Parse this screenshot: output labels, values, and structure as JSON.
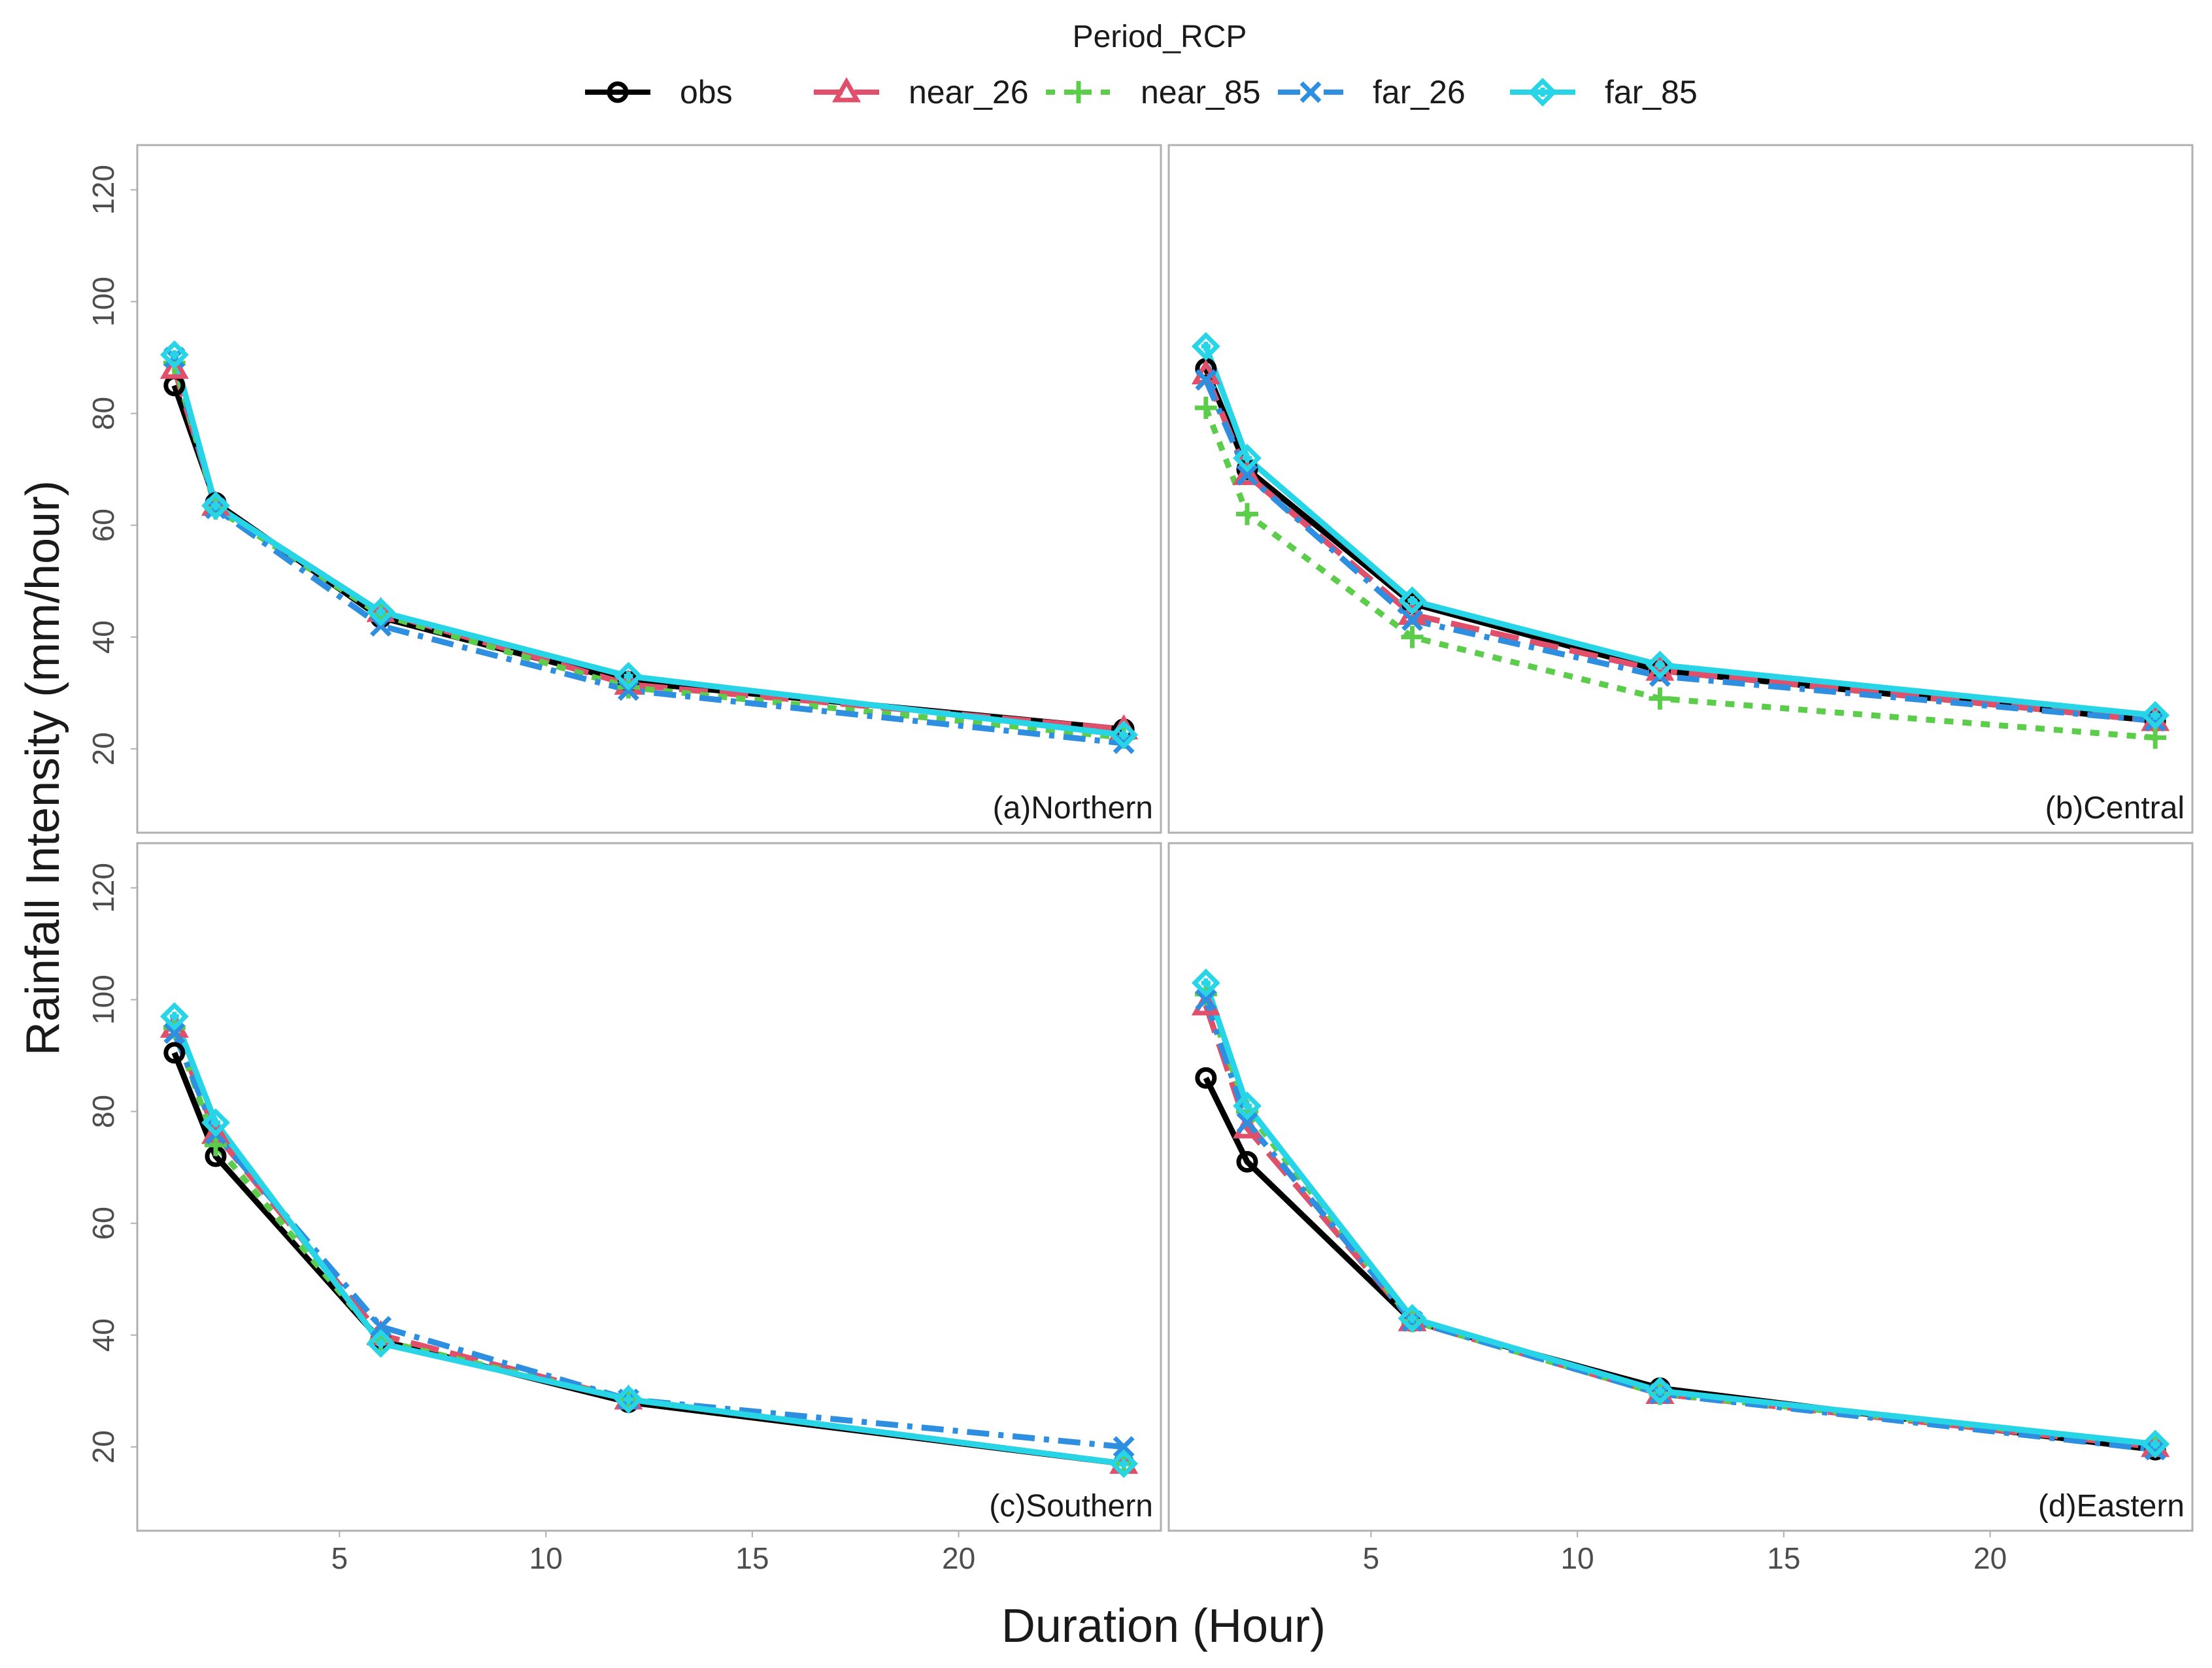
{
  "chart_data": {
    "type": "line",
    "legend": {
      "title": "Period_RCP",
      "position": "top",
      "entries": [
        "obs",
        "near_26",
        "near_85",
        "far_26",
        "far_85"
      ]
    },
    "xlabel": "Duration (Hour)",
    "ylabel": "Rainfall Intensity (mm/hour)",
    "xlim": [
      0.1,
      24.9
    ],
    "ylim": [
      5,
      128
    ],
    "x_ticks": [
      5,
      10,
      15,
      20
    ],
    "y_ticks": [
      20,
      40,
      60,
      80,
      100,
      120
    ],
    "x": [
      1,
      2,
      6,
      12,
      24
    ],
    "series_style": [
      {
        "name": "obs",
        "color": "#000000",
        "dash": "none",
        "marker": "circle"
      },
      {
        "name": "near_26",
        "color": "#e0506a",
        "dash": "long",
        "marker": "triangle"
      },
      {
        "name": "near_85",
        "color": "#5ccd4a",
        "dash": "dot",
        "marker": "plus"
      },
      {
        "name": "far_26",
        "color": "#2e8fe0",
        "dash": "dashdot",
        "marker": "cross"
      },
      {
        "name": "far_85",
        "color": "#28d5e6",
        "dash": "none",
        "marker": "diamond"
      }
    ],
    "panels": [
      {
        "label": "(a)Northern",
        "series": [
          {
            "name": "obs",
            "values": [
              85,
              64,
              43.5,
              32,
              23.5
            ]
          },
          {
            "name": "near_26",
            "values": [
              88,
              63.5,
              44.5,
              31.5,
              23.5
            ]
          },
          {
            "name": "near_85",
            "values": [
              89,
              63,
              44,
              31,
              22
            ]
          },
          {
            "name": "far_26",
            "values": [
              90,
              63,
              42,
              30.5,
              21
            ]
          },
          {
            "name": "far_85",
            "values": [
              90.5,
              63.5,
              44.5,
              33,
              22.5
            ]
          }
        ]
      },
      {
        "label": "(b)Central",
        "series": [
          {
            "name": "obs",
            "values": [
              88,
              70,
              46,
              34,
              25
            ]
          },
          {
            "name": "near_26",
            "values": [
              87,
              69,
              44,
              34,
              25
            ]
          },
          {
            "name": "near_85",
            "values": [
              81,
              62,
              40,
              29,
              22
            ]
          },
          {
            "name": "far_26",
            "values": [
              86,
              69,
              43,
              33,
              25
            ]
          },
          {
            "name": "far_85",
            "values": [
              92,
              72,
              46.5,
              35,
              26
            ]
          }
        ]
      },
      {
        "label": "(c)Southern",
        "series": [
          {
            "name": "obs",
            "values": [
              90.5,
              72,
              39,
              28,
              17
            ]
          },
          {
            "name": "near_26",
            "values": [
              95,
              76,
              40,
              28.5,
              17
            ]
          },
          {
            "name": "near_85",
            "values": [
              95,
              74,
              39,
              28.5,
              17
            ]
          },
          {
            "name": "far_26",
            "values": [
              94,
              76,
              41.5,
              28.5,
              20
            ]
          },
          {
            "name": "far_85",
            "values": [
              97,
              78,
              38.5,
              28.5,
              17
            ]
          }
        ]
      },
      {
        "label": "(d)Eastern",
        "series": [
          {
            "name": "obs",
            "values": [
              86,
              71,
              42.5,
              30.5,
              19.5
            ]
          },
          {
            "name": "near_26",
            "values": [
              99,
              77,
              42.5,
              29.5,
              20
            ]
          },
          {
            "name": "near_85",
            "values": [
              101,
              80,
              42.5,
              29.5,
              20.5
            ]
          },
          {
            "name": "far_26",
            "values": [
              100,
              78,
              42.5,
              29.5,
              19.5
            ]
          },
          {
            "name": "far_85",
            "values": [
              103,
              81,
              43,
              30,
              20.5
            ]
          }
        ]
      }
    ]
  }
}
